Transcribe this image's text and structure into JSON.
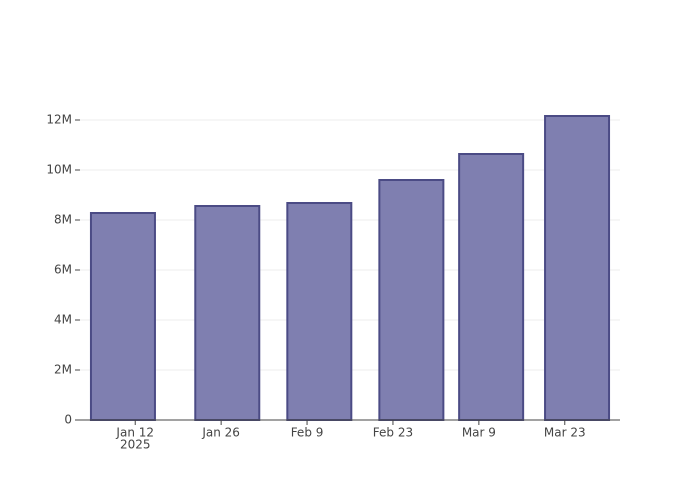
{
  "chart_data": {
    "type": "bar",
    "x": [
      "2025-01-10",
      "2025-01-27",
      "2025-02-11",
      "2025-02-26",
      "2025-03-11",
      "2025-03-25"
    ],
    "values": [
      8280000,
      8560000,
      8680000,
      9600000,
      10640000,
      12160000
    ],
    "color": "#7f7fb0",
    "edge_color": "#4b4b85",
    "xlim": [
      "2025-01-03",
      "2025-04-01"
    ],
    "xticks": [
      {
        "value": "2025-01-12",
        "label": "Jan 12"
      },
      {
        "value": "2025-01-26",
        "label": "Jan 26"
      },
      {
        "value": "2025-02-09",
        "label": "Feb 9"
      },
      {
        "value": "2025-02-23",
        "label": "Feb 23"
      },
      {
        "value": "2025-03-09",
        "label": "Mar 9"
      },
      {
        "value": "2025-03-23",
        "label": "Mar 23"
      }
    ],
    "x_year_label": "2025",
    "ylim": [
      0,
      12800000
    ],
    "yticks": [
      0,
      {
        "value": 2000000,
        "label": "2M"
      },
      {
        "value": 4000000,
        "label": "4M"
      },
      {
        "value": 6000000,
        "label": "6M"
      },
      {
        "value": 8000000,
        "label": "8M"
      },
      {
        "value": 10000000,
        "label": "10M"
      },
      {
        "value": 12000000,
        "label": "12M"
      }
    ],
    "grid": true
  }
}
